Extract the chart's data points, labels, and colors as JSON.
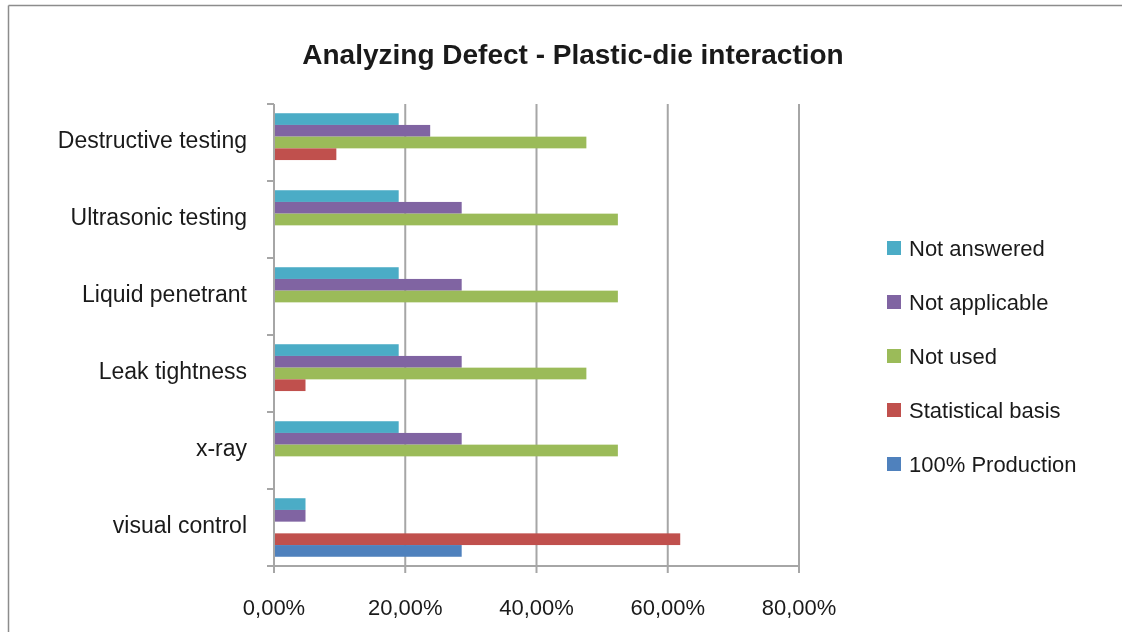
{
  "chart_data": {
    "type": "bar",
    "orientation": "horizontal",
    "title": "Analyzing Defect - Plastic-die interaction",
    "categories": [
      "Destructive testing",
      "Ultrasonic testing",
      "Liquid penetrant",
      "Leak tightness",
      "x-ray",
      "visual control"
    ],
    "series": [
      {
        "name": "Not answered",
        "color": "#4bacc6",
        "values": [
          19,
          19,
          19,
          19,
          19,
          4.8
        ]
      },
      {
        "name": "Not applicable",
        "color": "#8064a2",
        "values": [
          23.8,
          28.6,
          28.6,
          28.6,
          28.6,
          4.8
        ]
      },
      {
        "name": "Not used",
        "color": "#9bbb59",
        "values": [
          47.6,
          52.4,
          52.4,
          47.6,
          52.4,
          0
        ]
      },
      {
        "name": "Statistical basis",
        "color": "#c0504d",
        "values": [
          9.5,
          0,
          0,
          4.8,
          0,
          61.9
        ]
      },
      {
        "name": "100% Production",
        "color": "#4f81bd",
        "values": [
          0,
          0,
          0,
          0,
          0,
          28.6
        ]
      }
    ],
    "xlim": [
      0,
      80
    ],
    "xticks": [
      {
        "value": 0,
        "label": "0,00%"
      },
      {
        "value": 20,
        "label": "20,00%"
      },
      {
        "value": 40,
        "label": "40,00%"
      },
      {
        "value": 60,
        "label": "60,00%"
      },
      {
        "value": 80,
        "label": "80,00%"
      }
    ],
    "grid": "x",
    "legend": "right"
  }
}
